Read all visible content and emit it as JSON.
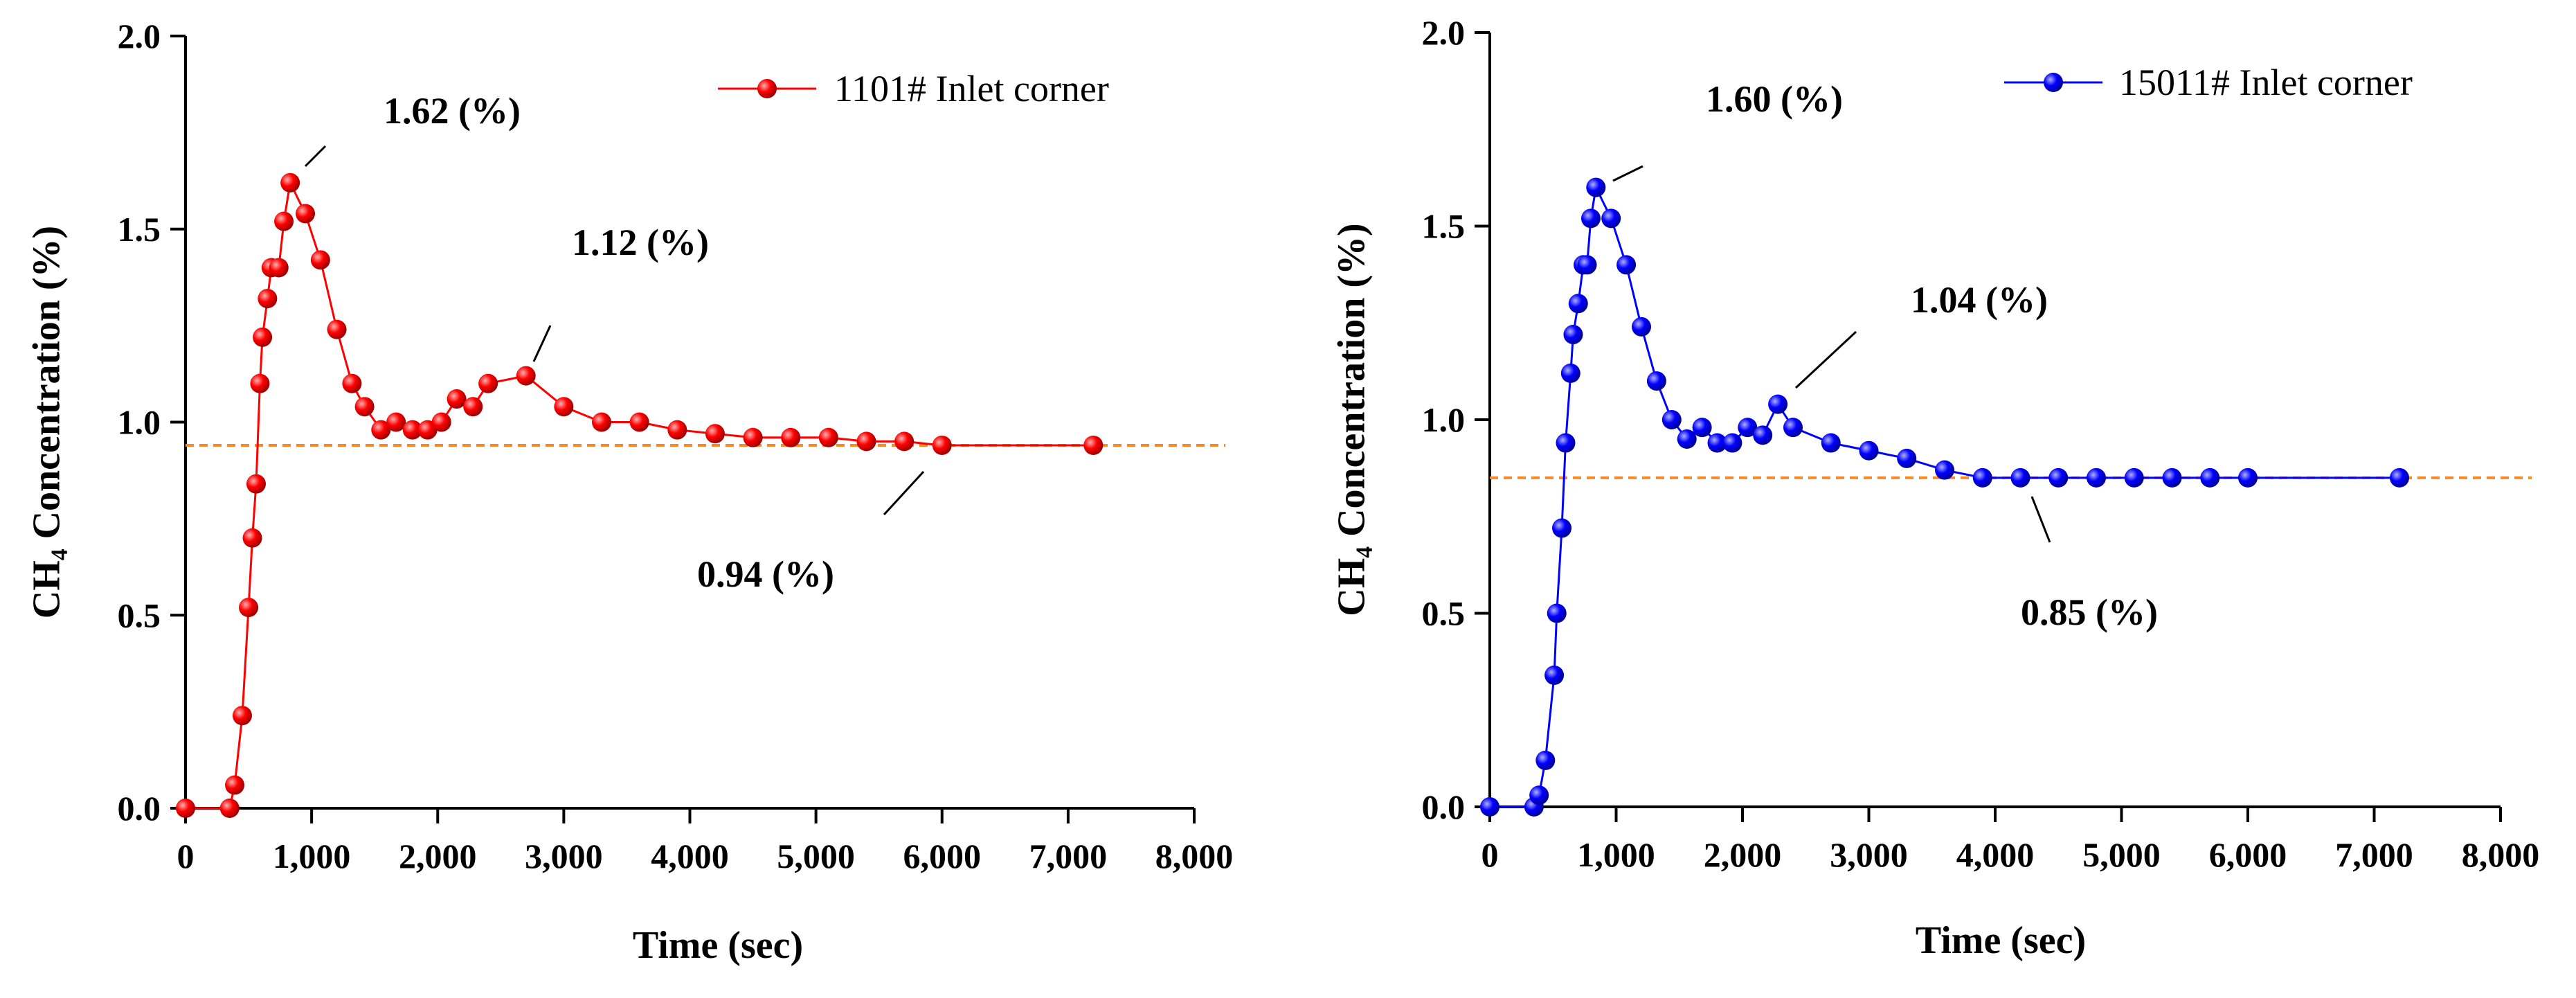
{
  "chart_data": [
    {
      "type": "line",
      "xlabel": "Time (sec)",
      "ylabel": "CH₄ Concentration (%)",
      "xlim": [
        0,
        8000
      ],
      "ylim": [
        0,
        2
      ],
      "xticks": [
        0,
        {
          "value": 1000,
          "label": "1,000"
        },
        {
          "value": 2000,
          "label": "2,000"
        },
        {
          "value": 3000,
          "label": "3,000"
        },
        {
          "value": 4000,
          "label": "4,000"
        },
        {
          "value": 5000,
          "label": "5,000"
        },
        {
          "value": 6000,
          "label": "6,000"
        },
        {
          "value": 7000,
          "label": "7,000"
        },
        {
          "value": 8000,
          "label": "8,000"
        }
      ],
      "yticks": [
        {
          "value": 0,
          "label": "0.0"
        },
        0.5,
        {
          "value": 1,
          "label": "1.0"
        },
        1.5,
        {
          "value": 2,
          "label": "2.0"
        }
      ],
      "legend": "upper right",
      "reference_line": 0.94,
      "reference_color": "#f7892b",
      "annotations": [
        "1.62 (%)",
        "1.12 (%)",
        "0.94 (%)"
      ],
      "series": [
        {
          "name": "1101# Inlet corner",
          "color": "#ff0000",
          "x": [
            0,
            350,
            390,
            450,
            500,
            530,
            560,
            590,
            610,
            650,
            680,
            740,
            780,
            830,
            950,
            1070,
            1200,
            1320,
            1420,
            1550,
            1670,
            1800,
            1920,
            2030,
            2150,
            2280,
            2400,
            2700,
            3000,
            3300,
            3600,
            3900,
            4200,
            4500,
            4800,
            5100,
            5400,
            5700,
            6000,
            7200
          ],
          "values": [
            0,
            0,
            0.06,
            0.24,
            0.52,
            0.7,
            0.84,
            1.1,
            1.22,
            1.32,
            1.4,
            1.4,
            1.52,
            1.62,
            1.54,
            1.42,
            1.24,
            1.1,
            1.04,
            0.98,
            1.0,
            0.98,
            0.98,
            1.0,
            1.06,
            1.04,
            1.1,
            1.12,
            1.04,
            1.0,
            1.0,
            0.98,
            0.97,
            0.96,
            0.96,
            0.96,
            0.95,
            0.95,
            0.94,
            0.94
          ]
        }
      ]
    },
    {
      "type": "line",
      "xlabel": "Time (sec)",
      "ylabel": "CH₄ Concentration (%)",
      "xlim": [
        0,
        8000
      ],
      "ylim": [
        0,
        2
      ],
      "xticks": [
        0,
        {
          "value": 1000,
          "label": "1,000"
        },
        {
          "value": 2000,
          "label": "2,000"
        },
        {
          "value": 3000,
          "label": "3,000"
        },
        {
          "value": 4000,
          "label": "4,000"
        },
        {
          "value": 5000,
          "label": "5,000"
        },
        {
          "value": 6000,
          "label": "6,000"
        },
        {
          "value": 7000,
          "label": "7,000"
        },
        {
          "value": 8000,
          "label": "8,000"
        }
      ],
      "yticks": [
        {
          "value": 0,
          "label": "0.0"
        },
        0.5,
        {
          "value": 1,
          "label": "1.0"
        },
        1.5,
        {
          "value": 2,
          "label": "2.0"
        }
      ],
      "legend": "upper right",
      "reference_line": 0.85,
      "reference_color": "#f7892b",
      "annotations": [
        "1.60 (%)",
        "1.04 (%)",
        "0.85 (%)"
      ],
      "series": [
        {
          "name": "15011# Inlet corner",
          "color": "#0000ff",
          "x": [
            0,
            350,
            390,
            440,
            510,
            530,
            570,
            600,
            640,
            660,
            700,
            740,
            770,
            800,
            840,
            960,
            1080,
            1200,
            1320,
            1440,
            1560,
            1680,
            1800,
            1920,
            2040,
            2160,
            2280,
            2400,
            2700,
            3000,
            3300,
            3600,
            3900,
            4200,
            4500,
            4800,
            5100,
            5400,
            5700,
            6000,
            7200
          ],
          "values": [
            0,
            0,
            0.03,
            0.12,
            0.34,
            0.5,
            0.72,
            0.94,
            1.12,
            1.22,
            1.3,
            1.4,
            1.4,
            1.52,
            1.6,
            1.52,
            1.4,
            1.24,
            1.1,
            1.0,
            0.95,
            0.98,
            0.94,
            0.94,
            0.98,
            0.96,
            1.04,
            0.98,
            0.94,
            0.92,
            0.9,
            0.87,
            0.85,
            0.85,
            0.85,
            0.85,
            0.85,
            0.85,
            0.85,
            0.85,
            0.85
          ]
        }
      ]
    }
  ]
}
